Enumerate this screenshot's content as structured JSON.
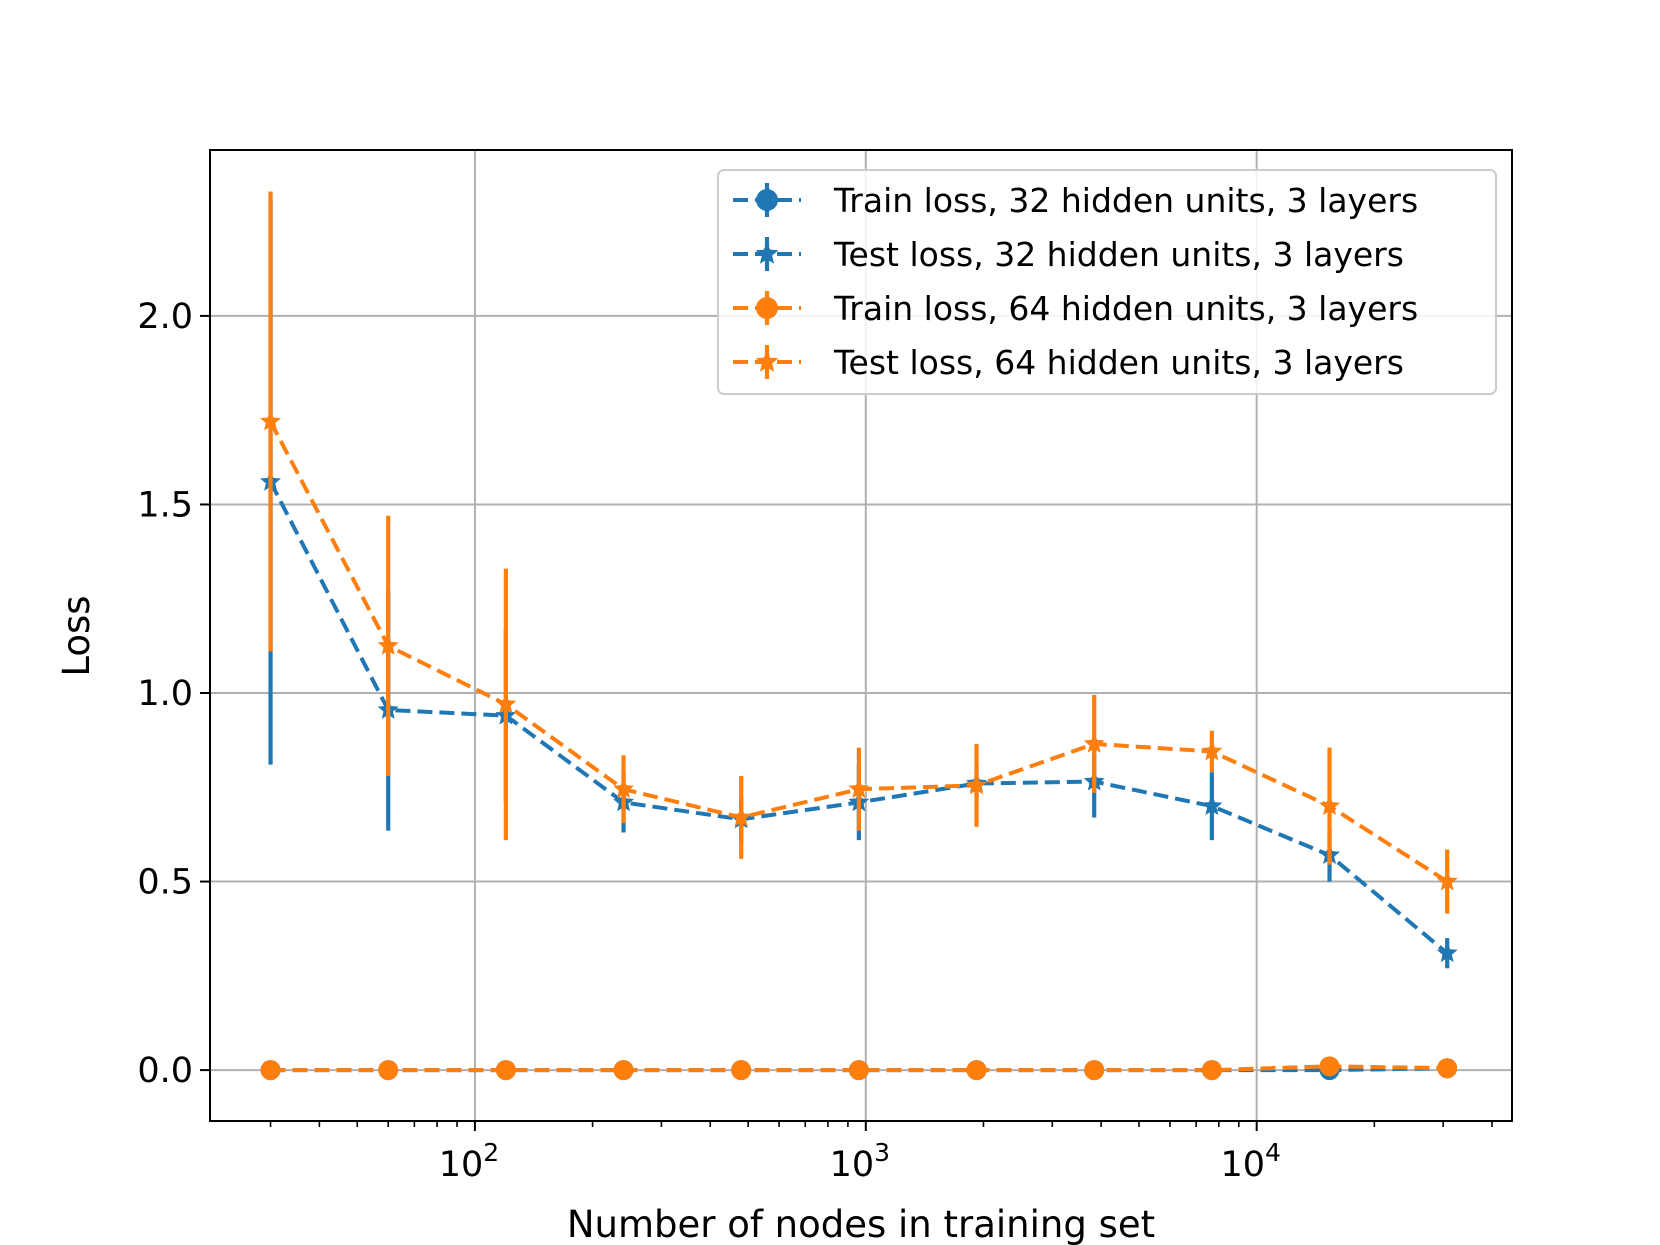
{
  "chart_data": {
    "type": "line",
    "title": "",
    "xlabel": "Number of nodes in training set",
    "ylabel": "Loss",
    "xscale": "log",
    "xlim": [
      21,
      45000
    ],
    "ylim": [
      -0.135,
      2.44
    ],
    "grid": true,
    "legend_position": "top-right",
    "x": [
      30,
      60,
      120,
      240,
      480,
      960,
      1920,
      3840,
      7680,
      15360,
      30720
    ],
    "xticks": [
      {
        "value": 100,
        "base": "10",
        "exp": "2"
      },
      {
        "value": 1000,
        "base": "10",
        "exp": "3"
      },
      {
        "value": 10000,
        "base": "10",
        "exp": "4"
      }
    ],
    "yticks": [
      {
        "value": 0.0,
        "label": "0.0"
      },
      {
        "value": 0.5,
        "label": "0.5"
      },
      {
        "value": 1.0,
        "label": "1.0"
      },
      {
        "value": 1.5,
        "label": "1.5"
      },
      {
        "value": 2.0,
        "label": "2.0"
      }
    ],
    "series": [
      {
        "name": "Train loss, 32 hidden units, 3 layers",
        "color": "#1f77b4",
        "marker": "circle",
        "values": [
          0.0,
          0.0,
          0.0,
          0.0,
          0.0,
          0.0,
          0.0,
          0.0,
          0.0,
          0.0,
          0.005
        ],
        "errors": [
          0.0,
          0.0,
          0.0,
          0.0,
          0.0,
          0.0,
          0.0,
          0.0,
          0.0,
          0.003,
          0.003
        ]
      },
      {
        "name": "Test loss, 32 hidden units, 3 layers",
        "color": "#1f77b4",
        "marker": "star",
        "values": [
          1.56,
          0.955,
          0.94,
          0.71,
          0.665,
          0.71,
          0.76,
          0.765,
          0.7,
          0.57,
          0.31
        ],
        "errors": [
          0.75,
          0.32,
          0.23,
          0.08,
          0.06,
          0.1,
          0.05,
          0.095,
          0.09,
          0.07,
          0.04
        ]
      },
      {
        "name": "Train loss, 64 hidden units, 3 layers",
        "color": "#ff7f0e",
        "marker": "circle",
        "values": [
          0.0,
          0.0,
          0.0,
          0.0,
          0.0,
          0.0,
          0.0,
          0.0,
          0.0,
          0.01,
          0.005
        ],
        "errors": [
          0.0,
          0.0,
          0.0,
          0.0,
          0.0,
          0.0,
          0.0,
          0.0,
          0.0,
          0.01,
          0.005
        ]
      },
      {
        "name": "Test loss, 64 hidden units, 3 layers",
        "color": "#ff7f0e",
        "marker": "star",
        "values": [
          1.72,
          1.125,
          0.97,
          0.745,
          0.67,
          0.745,
          0.755,
          0.865,
          0.845,
          0.7,
          0.5
        ],
        "errors": [
          0.61,
          0.345,
          0.36,
          0.09,
          0.11,
          0.11,
          0.11,
          0.13,
          0.055,
          0.155,
          0.085
        ]
      }
    ]
  }
}
